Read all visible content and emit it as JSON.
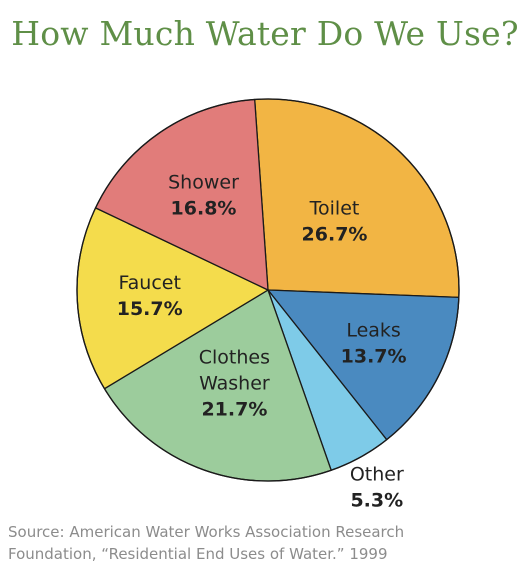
{
  "chart_data": {
    "type": "pie",
    "title": "How Much Water Do We Use?",
    "slices": [
      {
        "label": [
          "Toilet"
        ],
        "value": 26.7,
        "display": "26.7%",
        "color": "#f2b544"
      },
      {
        "label": [
          "Leaks"
        ],
        "value": 13.7,
        "display": "13.7%",
        "color": "#4a8ac0"
      },
      {
        "label": [
          "Other"
        ],
        "value": 5.3,
        "display": "5.3%",
        "color": "#7ecbe8"
      },
      {
        "label": [
          "Clothes",
          "Washer"
        ],
        "value": 21.7,
        "display": "21.7%",
        "color": "#9ccc9c"
      },
      {
        "label": [
          "Faucet"
        ],
        "value": 15.7,
        "display": "15.7%",
        "color": "#f4dc4c"
      },
      {
        "label": [
          "Shower"
        ],
        "value": 16.8,
        "display": "16.8%",
        "color": "#e17c7a"
      }
    ]
  },
  "source": {
    "line1": "Source: American Water Works Association Research",
    "line2": "Foundation, “Residential End Uses of Water.” 1999"
  }
}
